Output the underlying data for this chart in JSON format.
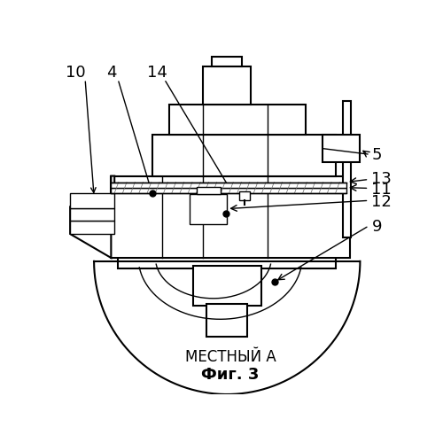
{
  "title": "МЕСТНЫЙ А",
  "subtitle": "Фиг. 3",
  "bg_color": "#ffffff",
  "line_color": "#000000"
}
